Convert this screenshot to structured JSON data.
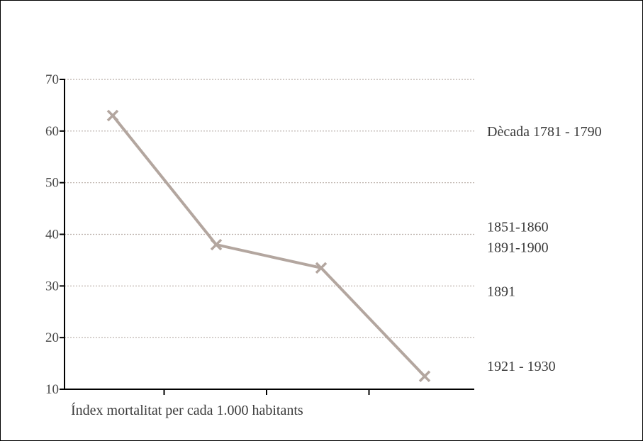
{
  "chart_data": {
    "type": "line",
    "title": "",
    "xlabel": "Índex mortalitat per cada 1.000 habitants",
    "ylabel": "",
    "ylim": [
      10,
      70
    ],
    "yticks": [
      "70",
      "60",
      "50",
      "40",
      "30",
      "20",
      "10"
    ],
    "grid": true,
    "legend": "none",
    "line_color": "#b3a69f",
    "grid_color": "#b9aea8",
    "series": [
      {
        "values": [
          63,
          38,
          33.5,
          12.5
        ]
      }
    ],
    "annotations": [
      {
        "text": "Dècada 1781 - 1790",
        "y": 60
      },
      {
        "text": "1851-1860",
        "y": 41.5
      },
      {
        "text": "1891-1900",
        "y": 37.5
      },
      {
        "text": "1891",
        "y": 29
      },
      {
        "text": "1921 - 1930",
        "y": 14.5
      }
    ]
  }
}
